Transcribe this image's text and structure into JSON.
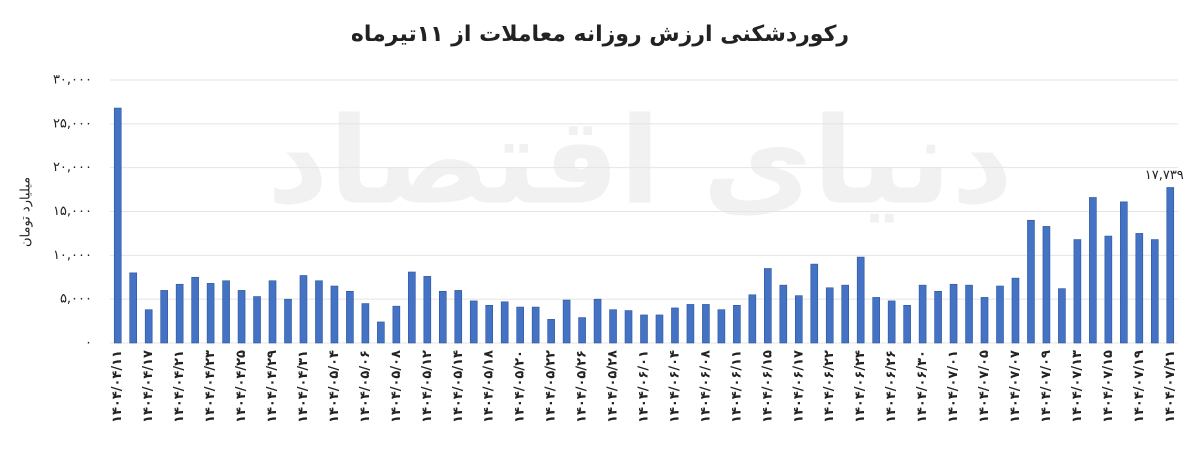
{
  "chart_data": {
    "type": "bar",
    "title": "رکوردشکنی ارزش روزانه معاملات از ۱۱تیرماه",
    "y_label": "میلیارد تومان",
    "watermark": "دنیای اقتصاد",
    "color": "#4472c4",
    "grid": true,
    "ylim": [
      0,
      30000
    ],
    "yticks": [
      {
        "value": 0,
        "label": "۰"
      },
      {
        "value": 5000,
        "label": "۵,۰۰۰"
      },
      {
        "value": 10000,
        "label": "۱۰,۰۰۰"
      },
      {
        "value": 15000,
        "label": "۱۵,۰۰۰"
      },
      {
        "value": 20000,
        "label": "۲۰,۰۰۰"
      },
      {
        "value": 25000,
        "label": "۲۵,۰۰۰"
      },
      {
        "value": 30000,
        "label": "۳۰,۰۰۰"
      }
    ],
    "categories": [
      "۱۴۰۴/۰۴/۱۱",
      null,
      "۱۴۰۴/۰۴/۱۷",
      null,
      "۱۴۰۴/۰۴/۲۱",
      null,
      "۱۴۰۴/۰۴/۲۳",
      null,
      "۱۴۰۴/۰۴/۲۵",
      null,
      "۱۴۰۴/۰۴/۲۹",
      null,
      "۱۴۰۴/۰۴/۳۱",
      null,
      "۱۴۰۴/۰۵/۰۴",
      null,
      "۱۴۰۴/۰۵/۰۶",
      null,
      "۱۴۰۴/۰۵/۰۸",
      null,
      "۱۴۰۴/۰۵/۱۲",
      null,
      "۱۴۰۴/۰۵/۱۴",
      null,
      "۱۴۰۴/۰۵/۱۸",
      null,
      "۱۴۰۴/۰۵/۲۰",
      null,
      "۱۴۰۴/۰۵/۲۲",
      null,
      "۱۴۰۴/۰۵/۲۶",
      null,
      "۱۴۰۴/۰۵/۲۸",
      null,
      "۱۴۰۴/۰۶/۰۱",
      null,
      "۱۴۰۴/۰۶/۰۴",
      null,
      "۱۴۰۴/۰۶/۰۸",
      null,
      "۱۴۰۴/۰۶/۱۱",
      null,
      "۱۴۰۴/۰۶/۱۵",
      null,
      "۱۴۰۴/۰۶/۱۷",
      null,
      "۱۴۰۴/۰۶/۲۲",
      null,
      "۱۴۰۴/۰۶/۲۴",
      null,
      "۱۴۰۴/۰۶/۲۶",
      null,
      "۱۴۰۴/۰۶/۳۰",
      null,
      "۱۴۰۴/۰۷/۰۱",
      null,
      "۱۴۰۴/۰۷/۰۵",
      null,
      "۱۴۰۴/۰۷/۰۷",
      null,
      "۱۴۰۴/۰۷/۰۹",
      null,
      "۱۴۰۴/۰۷/۱۳",
      null,
      "۱۴۰۴/۰۷/۱۵",
      null,
      "۱۴۰۴/۰۷/۱۹",
      null,
      "۱۴۰۴/۰۷/۲۱"
    ],
    "values": [
      26800,
      8000,
      3800,
      6000,
      6700,
      7500,
      6800,
      7100,
      6000,
      5300,
      7100,
      5000,
      7700,
      7100,
      6500,
      5900,
      4500,
      2400,
      4200,
      8100,
      7600,
      5900,
      6000,
      4800,
      4300,
      4700,
      4100,
      4100,
      2700,
      4900,
      2900,
      5000,
      3800,
      3700,
      3200,
      3200,
      4000,
      4400,
      4400,
      3800,
      4300,
      5500,
      8500,
      6600,
      5400,
      9000,
      6300,
      6600,
      9800,
      5200,
      4800,
      4300,
      6600,
      5900,
      6700,
      6600,
      5200,
      6500,
      7400,
      14000,
      13300,
      6200,
      11800,
      16600,
      12200,
      16100,
      12500,
      11800,
      17739
    ],
    "value_labels": [
      null,
      null,
      null,
      null,
      null,
      null,
      null,
      null,
      null,
      null,
      null,
      null,
      null,
      null,
      null,
      null,
      null,
      null,
      null,
      null,
      null,
      null,
      null,
      null,
      null,
      null,
      null,
      null,
      null,
      null,
      null,
      null,
      null,
      null,
      null,
      null,
      null,
      null,
      null,
      null,
      null,
      null,
      null,
      null,
      null,
      null,
      null,
      null,
      null,
      null,
      null,
      null,
      null,
      null,
      null,
      null,
      null,
      null,
      null,
      null,
      null,
      null,
      null,
      null,
      null,
      null,
      null,
      null,
      "۱۷,۷۳۹"
    ]
  }
}
